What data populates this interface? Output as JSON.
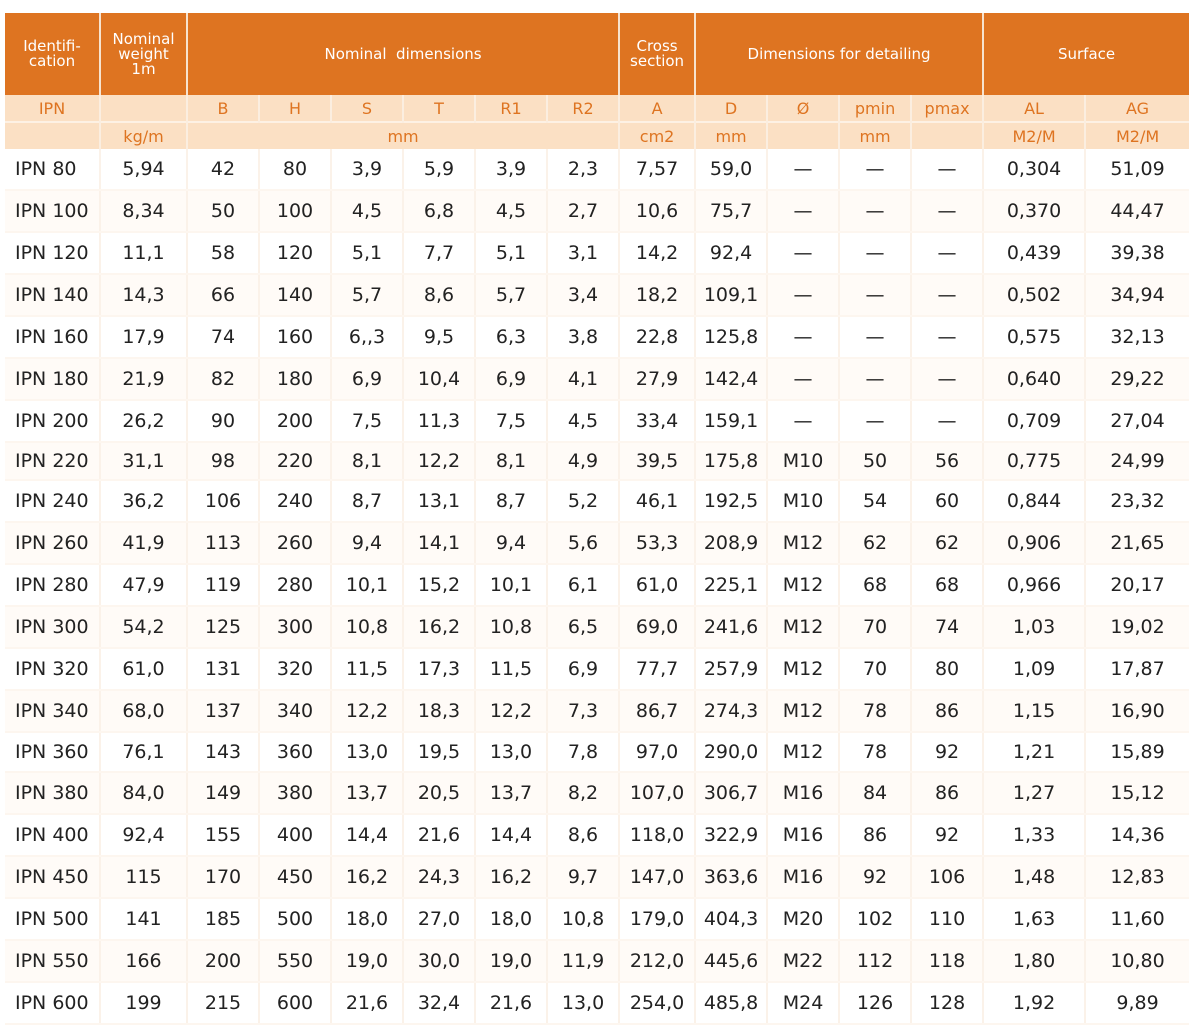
{
  "header_groups": [
    {
      "key": "id",
      "label": "Identifi-\ncation"
    },
    {
      "key": "weight",
      "label": "Nominal weight 1m"
    },
    {
      "key": "nominal",
      "label": "Nominal  dimensions"
    },
    {
      "key": "cross",
      "label": "Cross section"
    },
    {
      "key": "detailing",
      "label": "Dimensions for detailing"
    },
    {
      "key": "surface",
      "label": "Surface"
    }
  ],
  "symbols": [
    "IPN",
    "",
    "B",
    "H",
    "S",
    "T",
    "R1",
    "R2",
    "A",
    "D",
    "Ø",
    "pmin",
    "pmax",
    "AL",
    "AG"
  ],
  "units": {
    "weight": "kg/m",
    "nominal": "mm",
    "cross": "cm2",
    "d": "mm",
    "phi": "",
    "pmin": "mm",
    "pmax": "",
    "al": "M2/M",
    "ag": "M2/M"
  },
  "rows": [
    [
      "IPN 80",
      "5,94",
      "42",
      "80",
      "3,9",
      "5,9",
      "3,9",
      "2,3",
      "7,57",
      "59,0",
      "—",
      "—",
      "—",
      "0,304",
      "51,09"
    ],
    [
      "IPN 100",
      "8,34",
      "50",
      "100",
      "4,5",
      "6,8",
      "4,5",
      "2,7",
      "10,6",
      "75,7",
      "—",
      "—",
      "—",
      "0,370",
      "44,47"
    ],
    [
      "IPN 120",
      "11,1",
      "58",
      "120",
      "5,1",
      "7,7",
      "5,1",
      "3,1",
      "14,2",
      "92,4",
      "—",
      "—",
      "—",
      "0,439",
      "39,38"
    ],
    [
      "IPN 140",
      "14,3",
      "66",
      "140",
      "5,7",
      "8,6",
      "5,7",
      "3,4",
      "18,2",
      "109,1",
      "—",
      "—",
      "—",
      "0,502",
      "34,94"
    ],
    [
      "IPN 160",
      "17,9",
      "74",
      "160",
      "6,,3",
      "9,5",
      "6,3",
      "3,8",
      "22,8",
      "125,8",
      "—",
      "—",
      "—",
      "0,575",
      "32,13"
    ],
    [
      "IPN 180",
      "21,9",
      "82",
      "180",
      "6,9",
      "10,4",
      "6,9",
      "4,1",
      "27,9",
      "142,4",
      "—",
      "—",
      "—",
      "0,640",
      "29,22"
    ],
    [
      "IPN 200",
      "26,2",
      "90",
      "200",
      "7,5",
      "11,3",
      "7,5",
      "4,5",
      "33,4",
      "159,1",
      "—",
      "—",
      "—",
      "0,709",
      "27,04"
    ],
    [
      "IPN 220",
      "31,1",
      "98",
      "220",
      "8,1",
      "12,2",
      "8,1",
      "4,9",
      "39,5",
      "175,8",
      "M10",
      "50",
      "56",
      "0,775",
      "24,99"
    ],
    [
      "IPN 240",
      "36,2",
      "106",
      "240",
      "8,7",
      "13,1",
      "8,7",
      "5,2",
      "46,1",
      "192,5",
      "M10",
      "54",
      "60",
      "0,844",
      "23,32"
    ],
    [
      "IPN 260",
      "41,9",
      "113",
      "260",
      "9,4",
      "14,1",
      "9,4",
      "5,6",
      "53,3",
      "208,9",
      "M12",
      "62",
      "62",
      "0,906",
      "21,65"
    ],
    [
      "IPN 280",
      "47,9",
      "119",
      "280",
      "10,1",
      "15,2",
      "10,1",
      "6,1",
      "61,0",
      "225,1",
      "M12",
      "68",
      "68",
      "0,966",
      "20,17"
    ],
    [
      "IPN 300",
      "54,2",
      "125",
      "300",
      "10,8",
      "16,2",
      "10,8",
      "6,5",
      "69,0",
      "241,6",
      "M12",
      "70",
      "74",
      "1,03",
      "19,02"
    ],
    [
      "IPN 320",
      "61,0",
      "131",
      "320",
      "11,5",
      "17,3",
      "11,5",
      "6,9",
      "77,7",
      "257,9",
      "M12",
      "70",
      "80",
      "1,09",
      "17,87"
    ],
    [
      "IPN 340",
      "68,0",
      "137",
      "340",
      "12,2",
      "18,3",
      "12,2",
      "7,3",
      "86,7",
      "274,3",
      "M12",
      "78",
      "86",
      "1,15",
      "16,90"
    ],
    [
      "IPN 360",
      "76,1",
      "143",
      "360",
      "13,0",
      "19,5",
      "13,0",
      "7,8",
      "97,0",
      "290,0",
      "M12",
      "78",
      "92",
      "1,21",
      "15,89"
    ],
    [
      "IPN 380",
      "84,0",
      "149",
      "380",
      "13,7",
      "20,5",
      "13,7",
      "8,2",
      "107,0",
      "306,7",
      "M16",
      "84",
      "86",
      "1,27",
      "15,12"
    ],
    [
      "IPN 400",
      "92,4",
      "155",
      "400",
      "14,4",
      "21,6",
      "14,4",
      "8,6",
      "118,0",
      "322,9",
      "M16",
      "86",
      "92",
      "1,33",
      "14,36"
    ],
    [
      "IPN 450",
      "115",
      "170",
      "450",
      "16,2",
      "24,3",
      "16,2",
      "9,7",
      "147,0",
      "363,6",
      "M16",
      "92",
      "106",
      "1,48",
      "12,83"
    ],
    [
      "IPN 500",
      "141",
      "185",
      "500",
      "18,0",
      "27,0",
      "18,0",
      "10,8",
      "179,0",
      "404,3",
      "M20",
      "102",
      "110",
      "1,63",
      "11,60"
    ],
    [
      "IPN 550",
      "166",
      "200",
      "550",
      "19,0",
      "30,0",
      "19,0",
      "11,9",
      "212,0",
      "445,6",
      "M22",
      "112",
      "118",
      "1,80",
      "10,80"
    ],
    [
      "IPN 600",
      "199",
      "215",
      "600",
      "21,6",
      "32,4",
      "21,6",
      "13,0",
      "254,0",
      "485,8",
      "M24",
      "126",
      "128",
      "1,92",
      "9,89"
    ]
  ],
  "colors": {
    "header_bg": "#de7421",
    "sub_bg": "#fbe0c4",
    "accent_text": "#de7421",
    "body_text": "#222222"
  }
}
